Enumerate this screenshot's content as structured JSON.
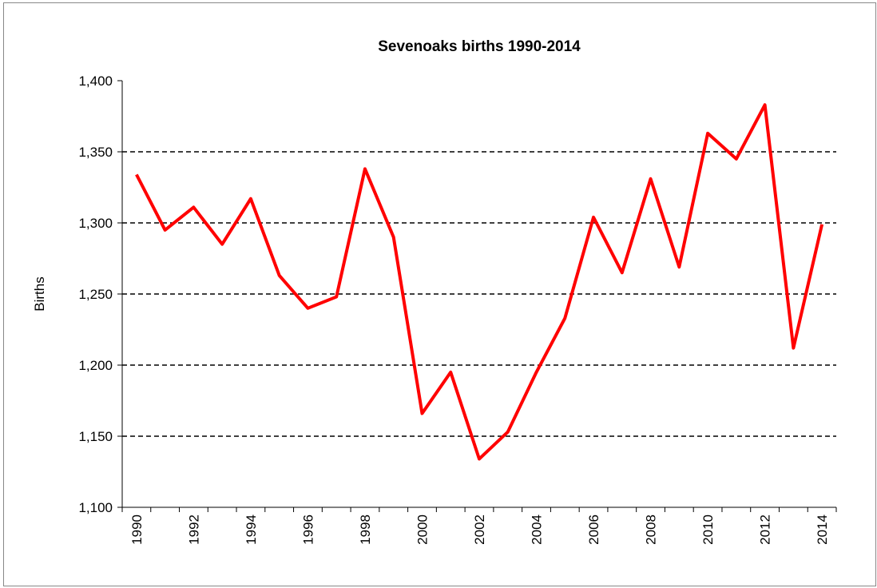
{
  "chart_data": {
    "type": "line",
    "title": "Sevenoaks births 1990-2014",
    "ylabel": "Births",
    "categories": [
      "1990",
      null,
      "1992",
      null,
      "1994",
      null,
      "1996",
      null,
      "1998",
      null,
      "2000",
      null,
      "2002",
      null,
      "2004",
      null,
      "2006",
      null,
      "2008",
      null,
      "2010",
      null,
      "2012",
      null,
      "2014"
    ],
    "series": [
      {
        "name": "Births",
        "color": "#ff0000",
        "values": [
          1334,
          1295,
          1311,
          1285,
          1317,
          1263,
          1240,
          1248,
          1338,
          1290,
          1166,
          1195,
          1134,
          1153,
          1195,
          1233,
          1304,
          1265,
          1331,
          1269,
          1363,
          1345,
          1383,
          1212,
          1299
        ]
      }
    ],
    "ylim": [
      1100,
      1400
    ],
    "yticks": [
      {
        "value": 1100,
        "label": "1,100"
      },
      {
        "value": 1150,
        "label": "1,150"
      },
      {
        "value": 1200,
        "label": "1,200"
      },
      {
        "value": 1250,
        "label": "1,250"
      },
      {
        "value": 1300,
        "label": "1,300"
      },
      {
        "value": 1350,
        "label": "1,350"
      },
      {
        "value": 1400,
        "label": "1,400"
      }
    ],
    "grid": true
  }
}
